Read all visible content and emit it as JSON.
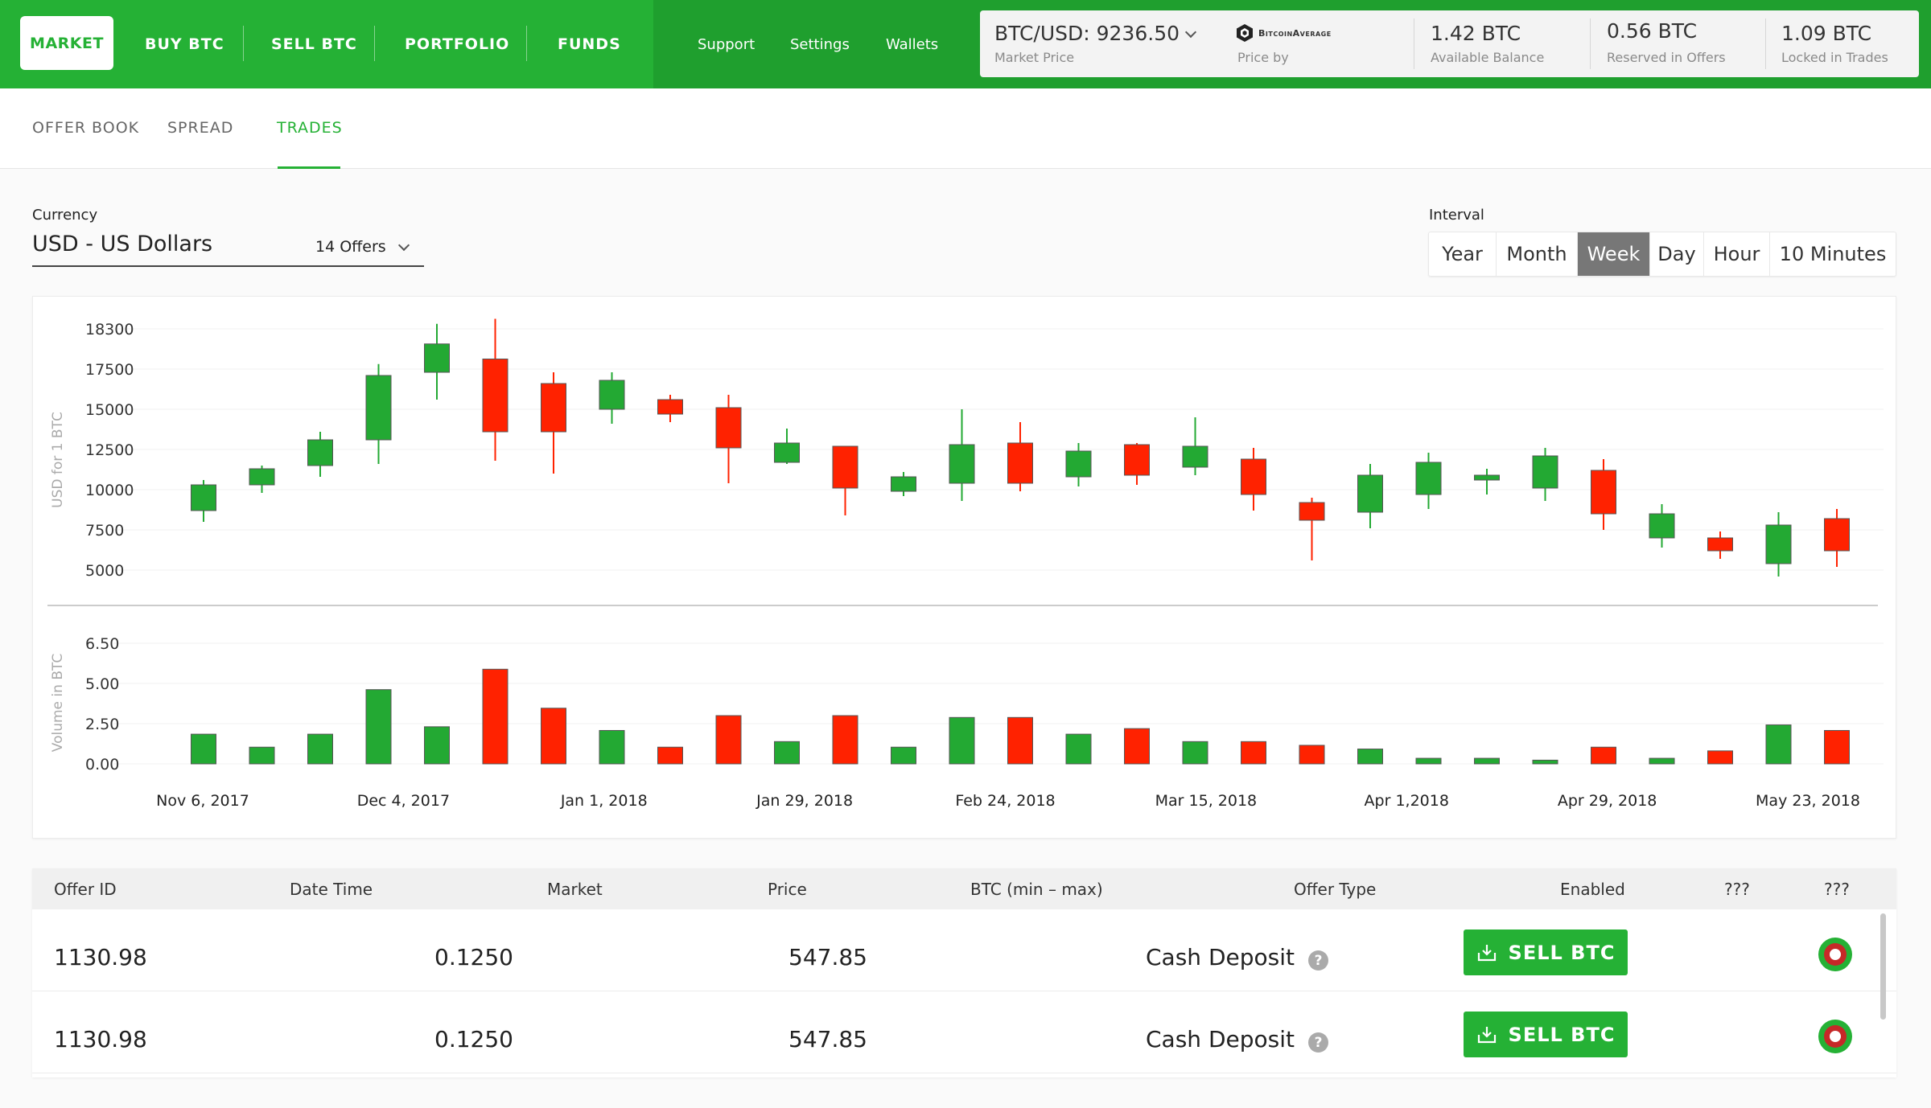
{
  "header": {
    "nav": [
      {
        "label": "MARKET",
        "active": true
      },
      {
        "label": "BUY BTC"
      },
      {
        "label": "SELL BTC"
      },
      {
        "label": "PORTFOLIO"
      },
      {
        "label": "FUNDS"
      }
    ],
    "subnav": [
      "Support",
      "Settings",
      "Wallets"
    ],
    "market_price": {
      "value": "BTC/USD: 9236.50",
      "label": "Market Price"
    },
    "price_by": {
      "label": "Price by",
      "provider": "BitcoinAverage"
    },
    "available": {
      "value": "1.42 BTC",
      "label": "Available Balance"
    },
    "reserved": {
      "value": "0.56 BTC",
      "label": "Reserved in Offers"
    },
    "locked": {
      "value": "1.09 BTC",
      "label": "Locked in Trades"
    }
  },
  "tabs": [
    {
      "label": "OFFER BOOK"
    },
    {
      "label": "SPREAD"
    },
    {
      "label": "TRADES",
      "active": true
    }
  ],
  "currency": {
    "label": "Currency",
    "value": "USD - US Dollars",
    "offers": "14 Offers"
  },
  "interval": {
    "label": "Interval",
    "options": [
      "Year",
      "Month",
      "Week",
      "Day",
      "Hour",
      "10 Minutes"
    ],
    "selected": "Week"
  },
  "chart_data": {
    "type": "candlestick",
    "colors": {
      "up": "#23a933",
      "down": "#ff2200"
    },
    "price_axis": {
      "label": "USD for 1 BTC",
      "ticks": [
        "18300",
        "17500",
        "15000",
        "12500",
        "10000",
        "7500",
        "5000"
      ]
    },
    "volume_axis": {
      "label": "Volume in BTC",
      "ticks": [
        "6.50",
        "5.00",
        "2.50",
        "0.00"
      ],
      "ylim": [
        0,
        6.5
      ]
    },
    "x_labels": [
      "Nov 6, 2017",
      "Dec 4, 2017",
      "Jan 1, 2018",
      "Jan 29, 2018",
      "Feb 24, 2018",
      "Mar 15, 2018",
      "Apr 1,2018",
      "Apr 29, 2018",
      "May 23, 2018"
    ],
    "candles": [
      {
        "o": 8700,
        "h": 10600,
        "l": 8000,
        "c": 10300,
        "v": 1.6
      },
      {
        "o": 10300,
        "h": 11500,
        "l": 9800,
        "c": 11300,
        "v": 0.9
      },
      {
        "o": 11500,
        "h": 13600,
        "l": 10800,
        "c": 13100,
        "v": 1.6
      },
      {
        "o": 13100,
        "h": 17600,
        "l": 11600,
        "c": 17100,
        "v": 4.0
      },
      {
        "o": 17300,
        "h": 18400,
        "l": 15600,
        "c": 18000,
        "v": 2.0
      },
      {
        "o": 17700,
        "h": 18500,
        "l": 11800,
        "c": 13600,
        "v": 5.1
      },
      {
        "o": 16600,
        "h": 17300,
        "l": 11000,
        "c": 13600,
        "v": 3.0
      },
      {
        "o": 15000,
        "h": 17300,
        "l": 14100,
        "c": 16800,
        "v": 1.8
      },
      {
        "o": 15600,
        "h": 15900,
        "l": 14200,
        "c": 14700,
        "v": 0.9
      },
      {
        "o": 15100,
        "h": 15900,
        "l": 10400,
        "c": 12600,
        "v": 2.6
      },
      {
        "o": 11700,
        "h": 13800,
        "l": 11600,
        "c": 12900,
        "v": 1.2
      },
      {
        "o": 12700,
        "h": 12700,
        "l": 8400,
        "c": 10100,
        "v": 2.6
      },
      {
        "o": 9900,
        "h": 11100,
        "l": 9600,
        "c": 10800,
        "v": 0.9
      },
      {
        "o": 10400,
        "h": 15000,
        "l": 9300,
        "c": 12800,
        "v": 2.5
      },
      {
        "o": 12900,
        "h": 14200,
        "l": 9900,
        "c": 10400,
        "v": 2.5
      },
      {
        "o": 10800,
        "h": 12900,
        "l": 10200,
        "c": 12400,
        "v": 1.6
      },
      {
        "o": 12800,
        "h": 12900,
        "l": 10300,
        "c": 10900,
        "v": 1.9
      },
      {
        "o": 11400,
        "h": 14500,
        "l": 10900,
        "c": 12700,
        "v": 1.2
      },
      {
        "o": 11900,
        "h": 12600,
        "l": 8700,
        "c": 9700,
        "v": 1.2
      },
      {
        "o": 9200,
        "h": 9500,
        "l": 5600,
        "c": 8100,
        "v": 1.0
      },
      {
        "o": 8600,
        "h": 11600,
        "l": 7600,
        "c": 10900,
        "v": 0.8
      },
      {
        "o": 9700,
        "h": 12300,
        "l": 8800,
        "c": 11700,
        "v": 0.3
      },
      {
        "o": 10600,
        "h": 11300,
        "l": 9700,
        "c": 10900,
        "v": 0.3
      },
      {
        "o": 10100,
        "h": 12600,
        "l": 9300,
        "c": 12100,
        "v": 0.2
      },
      {
        "o": 11200,
        "h": 11900,
        "l": 7500,
        "c": 8500,
        "v": 0.9
      },
      {
        "o": 7000,
        "h": 9100,
        "l": 6400,
        "c": 8500,
        "v": 0.3
      },
      {
        "o": 7000,
        "h": 7400,
        "l": 5700,
        "c": 6200,
        "v": 0.7
      },
      {
        "o": 5400,
        "h": 8600,
        "l": 4600,
        "c": 7800,
        "v": 2.1
      },
      {
        "o": 8200,
        "h": 8800,
        "l": 5200,
        "c": 6200,
        "v": 1.8
      }
    ]
  },
  "table": {
    "columns": [
      "Offer ID",
      "Date Time",
      "Market",
      "Price",
      "BTC (min – max)",
      "Offer Type",
      "Enabled",
      "???",
      "???"
    ],
    "rows": [
      {
        "id": "1130.98",
        "date": "0.1250",
        "price": "547.85",
        "type": "Cash Deposit",
        "action": "SELL BTC"
      },
      {
        "id": "1130.98",
        "date": "0.1250",
        "price": "547.85",
        "type": "Cash Deposit",
        "action": "SELL BTC"
      }
    ]
  }
}
